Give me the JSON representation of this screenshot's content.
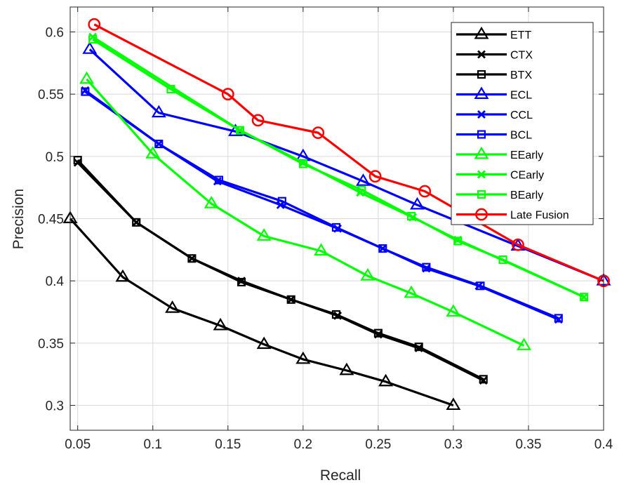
{
  "chart_data": {
    "type": "line",
    "xlabel": "Recall",
    "ylabel": "Precision",
    "xlim": [
      0.045,
      0.4
    ],
    "ylim": [
      0.28,
      0.62
    ],
    "xticks": [
      0.05,
      0.1,
      0.15,
      0.2,
      0.25,
      0.3,
      0.35,
      0.4
    ],
    "yticks": [
      0.3,
      0.35,
      0.4,
      0.45,
      0.5,
      0.55,
      0.6
    ],
    "xtick_labels": [
      "0.05",
      "0.1",
      "0.15",
      "0.2",
      "0.25",
      "0.3",
      "0.35",
      "0.4"
    ],
    "ytick_labels": [
      "0.3",
      "0.35",
      "0.4",
      "0.45",
      "0.5",
      "0.55",
      "0.6"
    ],
    "grid": true,
    "legend_position": "top-right",
    "series": [
      {
        "name": "ETT",
        "color": "#000000",
        "marker": "triangle",
        "x": [
          0.045,
          0.08,
          0.113,
          0.145,
          0.174,
          0.2,
          0.229,
          0.255,
          0.3
        ],
        "y": [
          0.45,
          0.403,
          0.378,
          0.364,
          0.349,
          0.337,
          0.328,
          0.319,
          0.3
        ]
      },
      {
        "name": "CTX",
        "color": "#000000",
        "marker": "x",
        "x": [
          0.05,
          0.089,
          0.126,
          0.159,
          0.192,
          0.223,
          0.25,
          0.277,
          0.32
        ],
        "y": [
          0.495,
          0.447,
          0.418,
          0.4,
          0.385,
          0.372,
          0.357,
          0.346,
          0.32
        ]
      },
      {
        "name": "BTX",
        "color": "#000000",
        "marker": "square",
        "x": [
          0.05,
          0.089,
          0.126,
          0.159,
          0.192,
          0.222,
          0.25,
          0.277,
          0.32
        ],
        "y": [
          0.497,
          0.447,
          0.418,
          0.399,
          0.385,
          0.373,
          0.358,
          0.347,
          0.321
        ]
      },
      {
        "name": "ECL",
        "color": "#0000ff",
        "marker": "triangle",
        "x": [
          0.058,
          0.104,
          0.155,
          0.2,
          0.24,
          0.276,
          0.343,
          0.4
        ],
        "y": [
          0.586,
          0.535,
          0.52,
          0.5,
          0.48,
          0.461,
          0.428,
          0.4
        ]
      },
      {
        "name": "CCL",
        "color": "#0000ff",
        "marker": "x",
        "x": [
          0.055,
          0.104,
          0.143,
          0.185,
          0.223,
          0.253,
          0.282,
          0.317,
          0.37
        ],
        "y": [
          0.553,
          0.51,
          0.48,
          0.461,
          0.442,
          0.426,
          0.41,
          0.396,
          0.369
        ]
      },
      {
        "name": "BCL",
        "color": "#0000ff",
        "marker": "square",
        "x": [
          0.055,
          0.104,
          0.144,
          0.186,
          0.222,
          0.253,
          0.282,
          0.318,
          0.37
        ],
        "y": [
          0.552,
          0.51,
          0.481,
          0.464,
          0.443,
          0.426,
          0.411,
          0.396,
          0.37
        ]
      },
      {
        "name": "EEarly",
        "color": "#00ff00",
        "marker": "triangle",
        "x": [
          0.056,
          0.1,
          0.139,
          0.174,
          0.212,
          0.243,
          0.272,
          0.3,
          0.347
        ],
        "y": [
          0.562,
          0.502,
          0.462,
          0.436,
          0.424,
          0.404,
          0.39,
          0.375,
          0.348
        ]
      },
      {
        "name": "CEarly",
        "color": "#00ff00",
        "marker": "x",
        "x": [
          0.06,
          0.158,
          0.2,
          0.238,
          0.273,
          0.303,
          0.387
        ],
        "y": [
          0.596,
          0.521,
          0.495,
          0.471,
          0.451,
          0.433,
          0.387
        ]
      },
      {
        "name": "BEarly",
        "color": "#00ff00",
        "marker": "square",
        "x": [
          0.06,
          0.112,
          0.158,
          0.2,
          0.239,
          0.272,
          0.303,
          0.333,
          0.387
        ],
        "y": [
          0.594,
          0.554,
          0.521,
          0.494,
          0.473,
          0.452,
          0.432,
          0.417,
          0.387
        ]
      },
      {
        "name": "Late Fusion",
        "color": "#ff0000",
        "marker": "circle",
        "x": [
          0.061,
          0.15,
          0.17,
          0.21,
          0.248,
          0.281,
          0.343,
          0.4
        ],
        "y": [
          0.606,
          0.55,
          0.529,
          0.519,
          0.484,
          0.472,
          0.429,
          0.4
        ]
      }
    ]
  }
}
